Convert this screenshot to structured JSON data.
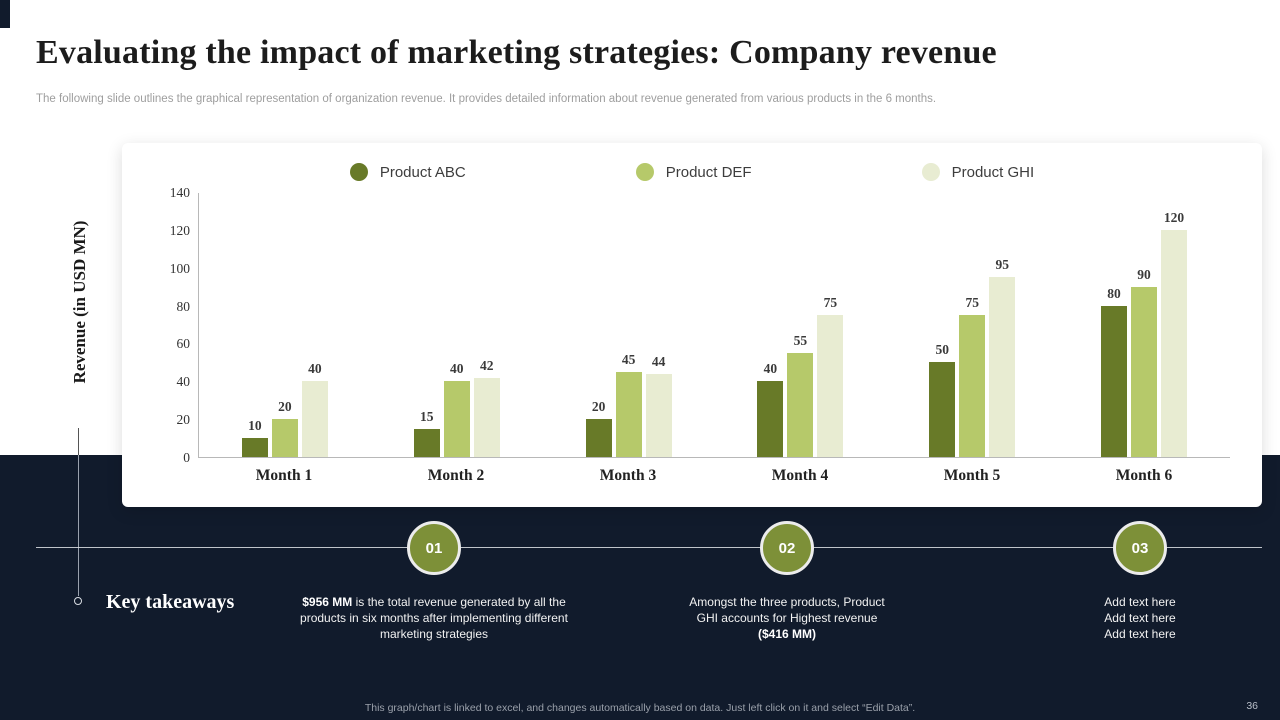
{
  "colors": {
    "dark_navy": "#111b2c",
    "milestone_olive": "#7d9038",
    "bar_abc": "#687a28",
    "bar_def": "#b6c96a",
    "bar_ghi": "#e8ecd2"
  },
  "header": {
    "title": "Evaluating the impact of marketing strategies: Company revenue",
    "subtitle": "The following slide outlines the graphical representation of organization revenue. It provides detailed information about revenue generated from various products in the 6 months."
  },
  "chart_data": {
    "type": "bar",
    "categories": [
      "Month 1",
      "Month 2",
      "Month 3",
      "Month 4",
      "Month 5",
      "Month 6"
    ],
    "series": [
      {
        "name": "Product ABC",
        "color": "#687a28",
        "values": [
          10,
          15,
          20,
          40,
          50,
          80
        ]
      },
      {
        "name": "Product DEF",
        "color": "#b6c96a",
        "values": [
          20,
          40,
          45,
          55,
          75,
          90
        ]
      },
      {
        "name": "Product GHI",
        "color": "#e8ecd2",
        "values": [
          40,
          42,
          44,
          75,
          95,
          120
        ]
      }
    ],
    "title": "",
    "xlabel": "",
    "ylabel": "Revenue (in USD MN)",
    "ylim": [
      0,
      140
    ],
    "yticks": [
      0,
      20,
      40,
      60,
      80,
      100,
      120,
      140
    ],
    "grid": false,
    "legend_position": "top",
    "data_labels": true
  },
  "takeaways": {
    "heading": "Key takeaways",
    "items": [
      {
        "number": "01",
        "bold": "$956 MM",
        "rest": " is the total revenue generated by all the products in six months after implementing different marketing strategies"
      },
      {
        "number": "02",
        "rest": "Amongst the three products, Product GHI accounts for Highest revenue ",
        "bold": "($416 MM)"
      },
      {
        "number": "03",
        "lines": [
          "Add text here",
          "Add text here",
          "Add text here"
        ]
      }
    ]
  },
  "footer": {
    "note": "This graph/chart is linked to excel, and changes automatically based on data. Just left click on it and select “Edit Data”.",
    "page_number": "36"
  }
}
